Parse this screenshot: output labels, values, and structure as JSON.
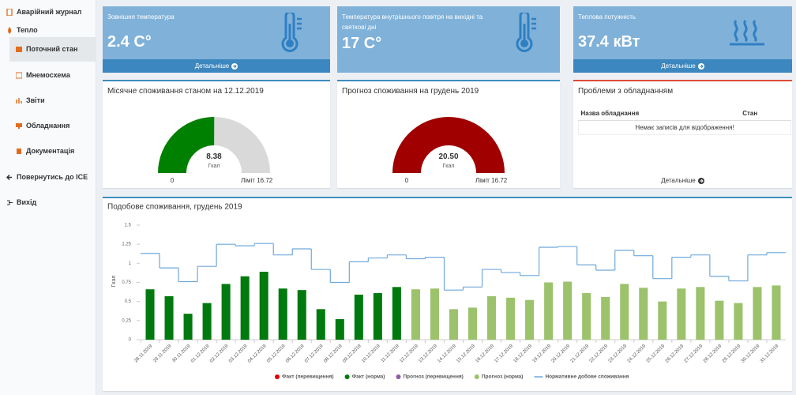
{
  "menu": [
    "Аварійний журнал",
    "Тепло",
    "Поточний стан",
    "Мнемосхема",
    "Звіти",
    "Обладнання",
    "Документація",
    "Повернутись до ICE",
    "Вихід"
  ],
  "cards": [
    {
      "title": "Зовнішня температура",
      "value": "2.4 C°",
      "link": "Детальніше"
    },
    {
      "title": "Температура внутрішнього повітря на вихідні та святкові дні",
      "value": "17 C°"
    },
    {
      "title": "Теплова потужність",
      "value": "37.4 кВт",
      "link": "Детальніше"
    }
  ],
  "gauges": [
    {
      "title": "Місячне споживання станом на 12.12.2019",
      "value": 8.38,
      "unit": "Гкал",
      "min": 0,
      "limit": 16.72,
      "limit_label": "Ліміт 16.72",
      "color": "#008000"
    },
    {
      "title": "Прогноз споживання на грудень 2019",
      "value": 20.5,
      "value_label": "20.50",
      "unit": "Гкал",
      "min": 0,
      "limit": 16.72,
      "limit_label": "Ліміт 16.72",
      "color": "#a00000"
    }
  ],
  "problems": {
    "title": "Проблеми з обладнанням",
    "columns": [
      "Назва обладнання",
      "Стан"
    ],
    "empty": "Немає записів для відображення!",
    "link": "Детальніше"
  },
  "chart_data": {
    "type": "bar",
    "title": "Подобове споживання, грудень 2019",
    "y_label": "Гкал",
    "categories": [
      "28.11.2019",
      "29.11.2019",
      "30.11.2019",
      "01.12.2019",
      "02.12.2019",
      "03.12.2019",
      "04.12.2019",
      "05.12.2019",
      "06.12.2019",
      "07.12.2019",
      "08.12.2019",
      "09.12.2019",
      "10.12.2019",
      "11.12.2019",
      "12.12.2019",
      "13.12.2019",
      "14.12.2019",
      "15.12.2019",
      "16.12.2019",
      "17.12.2019",
      "18.12.2019",
      "19.12.2019",
      "20.12.2019",
      "21.12.2019",
      "22.12.2019",
      "23.12.2019",
      "24.12.2019",
      "25.12.2019",
      "26.12.2019",
      "27.12.2019",
      "28.12.2019",
      "29.12.2019",
      "30.12.2019",
      "31.12.2019"
    ],
    "series": [
      {
        "name": "Факт (перевищення)",
        "color": "#e00000",
        "kind": "bar",
        "values": [
          null,
          null,
          null,
          null,
          null,
          null,
          null,
          null,
          null,
          null,
          null,
          null,
          null,
          null,
          null,
          null,
          null,
          null,
          null,
          null,
          null,
          null,
          null,
          null,
          null,
          null,
          null,
          null,
          null,
          null,
          null,
          null,
          null,
          null
        ]
      },
      {
        "name": "Факт (норма)",
        "color": "#007a0e",
        "kind": "bar",
        "values": [
          0.66,
          0.57,
          0.34,
          0.48,
          0.73,
          0.83,
          0.89,
          0.67,
          0.65,
          0.4,
          0.27,
          0.59,
          0.61,
          0.69,
          null,
          null,
          null,
          null,
          null,
          null,
          null,
          null,
          null,
          null,
          null,
          null,
          null,
          null,
          null,
          null,
          null,
          null,
          null,
          null
        ]
      },
      {
        "name": "Прогноз (перевищення)",
        "color": "#8e5ea2",
        "kind": "bar",
        "values": [
          null,
          null,
          null,
          null,
          null,
          null,
          null,
          null,
          null,
          null,
          null,
          null,
          null,
          null,
          null,
          null,
          null,
          null,
          null,
          null,
          null,
          null,
          null,
          null,
          null,
          null,
          null,
          null,
          null,
          null,
          null,
          null,
          null,
          null
        ]
      },
      {
        "name": "Прогноз (норма)",
        "color": "#9cc26b",
        "kind": "bar",
        "values": [
          null,
          null,
          null,
          null,
          null,
          null,
          null,
          null,
          null,
          null,
          null,
          null,
          null,
          null,
          0.66,
          0.67,
          0.4,
          0.42,
          0.57,
          0.55,
          0.52,
          0.75,
          0.76,
          0.61,
          0.56,
          0.73,
          0.68,
          0.5,
          0.67,
          0.69,
          0.51,
          0.48,
          0.69,
          0.71
        ]
      },
      {
        "name": "Нормативне добове споживання",
        "color": "#6fa8dc",
        "kind": "line",
        "values": [
          1.13,
          0.94,
          0.76,
          0.96,
          1.25,
          1.23,
          1.26,
          1.11,
          1.19,
          0.92,
          0.75,
          1.02,
          1.07,
          1.11,
          1.06,
          1.08,
          0.65,
          0.69,
          0.92,
          0.88,
          0.84,
          1.21,
          1.22,
          0.98,
          0.91,
          1.17,
          1.1,
          0.8,
          1.08,
          1.11,
          0.83,
          0.77,
          1.11,
          1.14
        ]
      }
    ],
    "ylim": [
      0,
      1.5
    ],
    "yticks": [
      0,
      0.25,
      0.5,
      0.75,
      1,
      1.25,
      1.5
    ],
    "grid": false
  }
}
